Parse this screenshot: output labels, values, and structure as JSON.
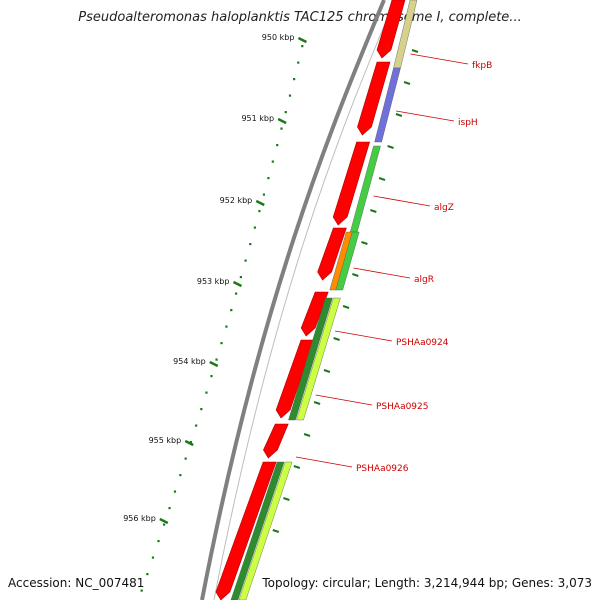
{
  "title": "Pseudoalteromonas haloplanktis TAC125 chromosome I, complete...",
  "accession": "Accession: NC_007481",
  "summary": "Topology: circular; Length: 3,214,944 bp; Genes: 3,073",
  "scale_labels": [
    "950 kbp",
    "951 kbp",
    "952 kbp",
    "953 kbp",
    "954 kbp",
    "955 kbp",
    "956 kbp"
  ],
  "genes": [
    {
      "name": "fkpB",
      "color": "#d6d28c"
    },
    {
      "name": "ispH",
      "color": "#7070d8"
    },
    {
      "name": "algZ",
      "color": "#44cc44"
    },
    {
      "name": "algR",
      "color": "#ff8c00"
    },
    {
      "name": "PSHAa0924",
      "color": "#2e8b2e"
    },
    {
      "name": "PSHAa0925",
      "color": "#ccff44"
    },
    {
      "name": "PSHAa0926",
      "color": "#ccff44"
    }
  ],
  "colors": {
    "backbone": "#808080",
    "cds": "#ff0000",
    "scale": "#1a7a1a",
    "label": "#cc0000"
  }
}
